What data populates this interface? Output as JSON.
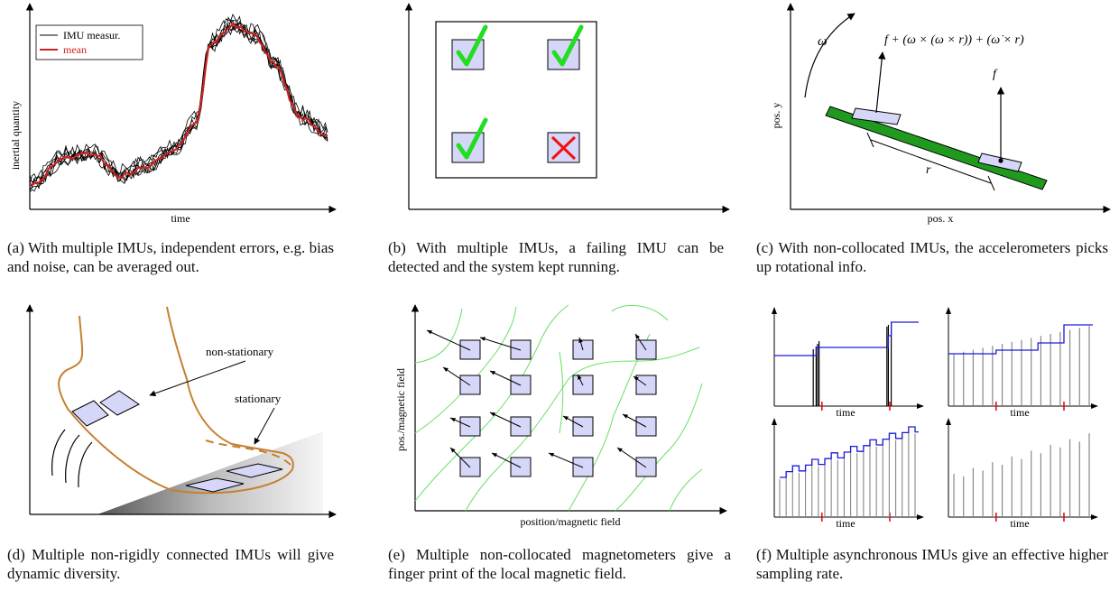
{
  "panel_a": {
    "ylabel": "inertial quantity",
    "xlabel": "time",
    "legend": [
      "IMU measur.",
      "mean"
    ],
    "caption": "(a) With multiple IMUs, independent errors, e.g. bias and noise, can be averaged out."
  },
  "panel_b": {
    "caption": "(b) With multiple IMUs, a failing IMU can be detected and the system kept running."
  },
  "panel_c": {
    "omega": "ω",
    "formula": "f + (ω × (ω × r)) + (ω̇ × r)",
    "f_label": "f",
    "r_label": "r",
    "ylabel": "pos. y",
    "xlabel": "pos. x",
    "caption": "(c) With non-collocated IMUs, the accelerometers picks up rotational info."
  },
  "panel_d": {
    "label_nonstationary": "non-stationary",
    "label_stationary": "stationary",
    "caption": "(d) Multiple non-rigidly connected IMUs will give dynamic diversity."
  },
  "panel_e": {
    "ylabel": "pos./magnetic field",
    "xlabel": "position/magnetic field",
    "caption": "(e) Multiple non-collocated magnetometers give a finger print of the local magnetic field."
  },
  "panel_f": {
    "sub_xlabel": "time",
    "caption": "(f) Multiple asynchronous IMUs give an effective higher sampling rate."
  },
  "colors": {
    "box_fill": "#d6d6f8",
    "check": "#22dd22",
    "cross": "#ee1111",
    "bar": "#1f9a1f",
    "field": "#66e066",
    "skin": "#c58030",
    "mean": "#cc2222",
    "blue": "#1a1adc"
  }
}
